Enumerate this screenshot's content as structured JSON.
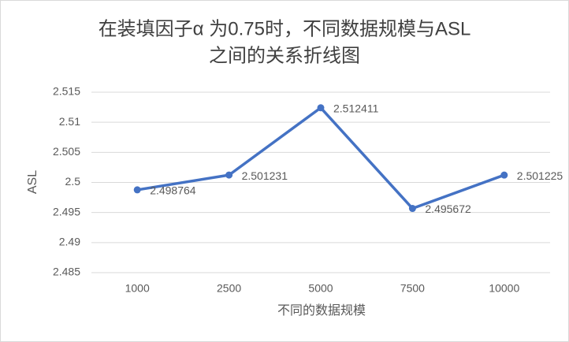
{
  "chart_data": {
    "type": "line",
    "title": [
      "在装填因子α 为0.75时，不同数据规模与ASL",
      "之间的关系折线图"
    ],
    "x_label": "不同的数据规模",
    "y_label": "ASL",
    "categories": [
      "1000",
      "2500",
      "5000",
      "7500",
      "10000"
    ],
    "series": [
      {
        "name": "ASL",
        "color": "#4472c4",
        "values": [
          2.498764,
          2.501231,
          2.512411,
          2.495672,
          2.501225
        ]
      }
    ],
    "ylim": [
      2.485,
      2.515
    ],
    "yticks": [
      2.485,
      2.49,
      2.495,
      2.5,
      2.505,
      2.51,
      2.515
    ],
    "grid": true
  }
}
